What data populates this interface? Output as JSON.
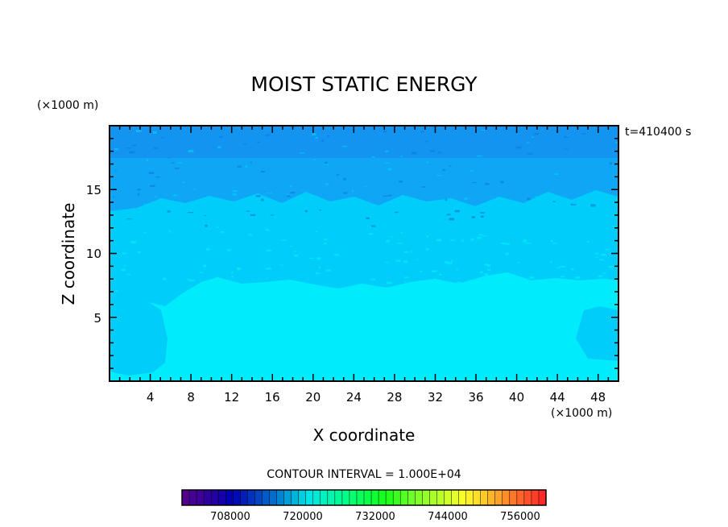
{
  "chart_data": {
    "type": "heatmap",
    "title": "MOIST STATIC ENERGY",
    "xlabel": "X coordinate",
    "ylabel": "Z coordinate",
    "x_unit": "(×1000 m)",
    "y_unit": "(×1000 m)",
    "time_label": "t=410400 s",
    "xlim": [
      0,
      50
    ],
    "ylim": [
      0,
      20
    ],
    "x_ticks": [
      4,
      8,
      12,
      16,
      20,
      24,
      28,
      32,
      36,
      40,
      44,
      48
    ],
    "y_ticks": [
      5,
      10,
      15
    ],
    "contour_interval_label": "CONTOUR INTERVAL = 1.000E+04",
    "colorbar": {
      "min": 700000,
      "max": 760000,
      "tick_values": [
        708000,
        720000,
        732000,
        744000,
        756000
      ],
      "tick_labels": [
        "708000",
        "720000",
        "732000",
        "744000",
        "756000"
      ]
    },
    "levels": [
      {
        "name": "lower",
        "z_range": [
          0,
          8
        ],
        "color": "#00ecfc"
      },
      {
        "name": "middle",
        "z_range": [
          8,
          13
        ],
        "color": "#00cdfa"
      },
      {
        "name": "upper",
        "z_range": [
          13,
          20
        ],
        "color": "#0fa6f6"
      }
    ],
    "colors": {
      "lower": "#00ecfc",
      "middle": "#00cdfa",
      "upper": "#0fa6f6",
      "top": "#1294f0",
      "speckle": "#0a7fe2"
    }
  }
}
